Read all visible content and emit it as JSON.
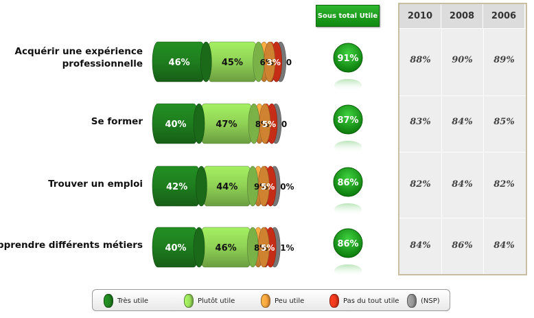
{
  "subtotal_header": "Sous total Utile",
  "years": [
    "2010",
    "2008",
    "2006"
  ],
  "colors": {
    "tres_utile": "#1e7d1e",
    "plutot_utile": "#8fd155",
    "peu_utile": "#f39a3a",
    "pas_du_tout": "#e8351a",
    "nsp": "#8c8c8c",
    "subtotal": "#1a9a1a"
  },
  "legend": [
    "Très utile",
    "Plutôt utile",
    "Peu utile",
    "Pas du tout utile",
    "(NSP)"
  ],
  "chart_data": {
    "type": "bar",
    "stacked": true,
    "orientation": "horizontal",
    "categories": [
      [
        "Acquérir une expérience",
        "professionnelle"
      ],
      [
        "Se former"
      ],
      [
        "Trouver un emploi"
      ],
      [
        "Apprendre différents métiers"
      ]
    ],
    "series": [
      {
        "name": "Très utile",
        "values": [
          46,
          40,
          42,
          40
        ],
        "labels": [
          "46%",
          "40%",
          "42%",
          "40%"
        ]
      },
      {
        "name": "Plutôt utile",
        "values": [
          45,
          47,
          44,
          46
        ],
        "labels": [
          "45%",
          "47%",
          "44%",
          "46%"
        ]
      },
      {
        "name": "Peu utile",
        "values": [
          6,
          8,
          9,
          8
        ],
        "labels": [
          "6%",
          "8%",
          "9%",
          "8%"
        ]
      },
      {
        "name": "Pas du tout utile",
        "values": [
          3,
          5,
          5,
          5
        ],
        "labels": [
          "3%",
          "5%",
          "5%",
          "5%"
        ]
      },
      {
        "name": "(NSP)",
        "values": [
          0,
          0,
          0,
          1
        ],
        "labels": [
          "0",
          "0",
          "0%",
          "1%"
        ]
      }
    ],
    "subtotal": {
      "name": "Sous total Utile",
      "values": [
        "91%",
        "87%",
        "86%",
        "86%"
      ]
    },
    "history": {
      "2010": [
        "88%",
        "83%",
        "82%",
        "84%"
      ],
      "2008": [
        "90%",
        "84%",
        "84%",
        "86%"
      ],
      "2006": [
        "89%",
        "85%",
        "82%",
        "84%"
      ]
    }
  }
}
